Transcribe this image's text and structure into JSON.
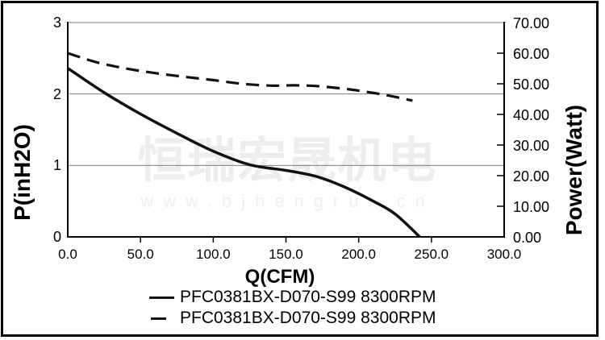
{
  "watermark": {
    "line1": "恒瑞宏晟机电",
    "line2": "www.bjhengrui.cn"
  },
  "chart_data": {
    "type": "line",
    "title": "",
    "xlabel": "Q(CFM)",
    "ylabel_left": "P(inH2O)",
    "ylabel_right": "Power(Watt)",
    "xlim": [
      0,
      300
    ],
    "ylim_left": [
      0,
      3
    ],
    "ylim_right": [
      0,
      70
    ],
    "x_ticks": [
      {
        "value": 0,
        "label": "0.0"
      },
      {
        "value": 50,
        "label": "50.0"
      },
      {
        "value": 100,
        "label": "100.0"
      },
      {
        "value": 150,
        "label": "150.0"
      },
      {
        "value": 200,
        "label": "200.0"
      },
      {
        "value": 250,
        "label": "250.0"
      },
      {
        "value": 300,
        "label": "300.0"
      }
    ],
    "y_left_ticks": [
      {
        "value": 3,
        "label": "3"
      },
      {
        "value": 2,
        "label": "2"
      },
      {
        "value": 1,
        "label": "1"
      },
      {
        "value": 0,
        "label": "0"
      }
    ],
    "y_right_ticks": [
      {
        "value": 70,
        "label": "70.00"
      },
      {
        "value": 60,
        "label": "60.00"
      },
      {
        "value": 50,
        "label": "50.00"
      },
      {
        "value": 40,
        "label": "40.00"
      },
      {
        "value": 30,
        "label": "30.00"
      },
      {
        "value": 20,
        "label": "20.00"
      },
      {
        "value": 10,
        "label": "10.00"
      },
      {
        "value": 0,
        "label": "0.00"
      }
    ],
    "gridlines_left_values": [
      1,
      2,
      3
    ],
    "legend_position": "bottom",
    "series": [
      {
        "name": "PFC0381BX-D070-S99 8300RPM",
        "style": "solid",
        "axis": "left",
        "points": [
          [
            0,
            2.36
          ],
          [
            25,
            2.02
          ],
          [
            50,
            1.72
          ],
          [
            75,
            1.45
          ],
          [
            100,
            1.2
          ],
          [
            125,
            1.01
          ],
          [
            150,
            0.93
          ],
          [
            170,
            0.85
          ],
          [
            190,
            0.7
          ],
          [
            210,
            0.5
          ],
          [
            225,
            0.32
          ],
          [
            242,
            0.0
          ]
        ]
      },
      {
        "name": "PFC0381BX-D070-S99 8300RPM",
        "style": "dashed",
        "axis": "right",
        "points": [
          [
            0,
            60
          ],
          [
            20,
            57
          ],
          [
            40,
            55
          ],
          [
            60,
            53.5
          ],
          [
            80,
            52.3
          ],
          [
            100,
            51.2
          ],
          [
            120,
            50.0
          ],
          [
            140,
            49.4
          ],
          [
            155,
            49.5
          ],
          [
            170,
            49.3
          ],
          [
            190,
            48.4
          ],
          [
            205,
            47.4
          ],
          [
            220,
            46.2
          ],
          [
            237,
            44.5
          ]
        ]
      }
    ],
    "legend": [
      {
        "label": "PFC0381BX-D070-S99 8300RPM",
        "style": "solid"
      },
      {
        "label": "PFC0381BX-D070-S99 8300RPM",
        "style": "dashed"
      }
    ],
    "colors": {
      "line": "#111111",
      "grid": "#7f7f7f",
      "spine": "#000000",
      "watermark": "#ededed"
    }
  }
}
